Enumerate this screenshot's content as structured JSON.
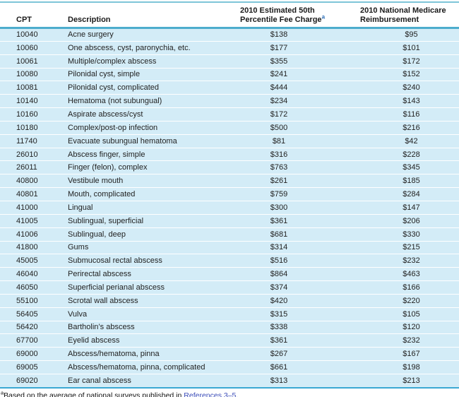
{
  "header": {
    "cpt": "CPT",
    "description": "Description",
    "fee_line1": "2010 Estimated 50th",
    "fee_line2": "Percentile Fee Charge",
    "fee_footnote_mark": "a",
    "medicare_line1": "2010 National Medicare",
    "medicare_line2": "Reimbursement"
  },
  "rows": [
    {
      "cpt": "10040",
      "description": "Acne surgery",
      "fee": "$138",
      "medicare": "$95"
    },
    {
      "cpt": "10060",
      "description": "One abscess, cyst, paronychia, etc.",
      "fee": "$177",
      "medicare": "$101"
    },
    {
      "cpt": "10061",
      "description": "Multiple/complex abscess",
      "fee": "$355",
      "medicare": "$172"
    },
    {
      "cpt": "10080",
      "description": "Pilonidal cyst, simple",
      "fee": "$241",
      "medicare": "$152"
    },
    {
      "cpt": "10081",
      "description": "Pilonidal cyst, complicated",
      "fee": "$444",
      "medicare": "$240"
    },
    {
      "cpt": "10140",
      "description": "Hematoma (not subungual)",
      "fee": "$234",
      "medicare": "$143"
    },
    {
      "cpt": "10160",
      "description": "Aspirate abscess/cyst",
      "fee": "$172",
      "medicare": "$116"
    },
    {
      "cpt": "10180",
      "description": "Complex/post-op infection",
      "fee": "$500",
      "medicare": "$216"
    },
    {
      "cpt": "11740",
      "description": "Evacuate subungual hematoma",
      "fee": "$81",
      "medicare": "$42"
    },
    {
      "cpt": "26010",
      "description": "Abscess finger, simple",
      "fee": "$316",
      "medicare": "$228"
    },
    {
      "cpt": "26011",
      "description": "Finger (felon), complex",
      "fee": "$763",
      "medicare": "$345"
    },
    {
      "cpt": "40800",
      "description": "Vestibule mouth",
      "fee": "$261",
      "medicare": "$185"
    },
    {
      "cpt": "40801",
      "description": "Mouth, complicated",
      "fee": "$759",
      "medicare": "$284"
    },
    {
      "cpt": "41000",
      "description": "Lingual",
      "fee": "$300",
      "medicare": "$147"
    },
    {
      "cpt": "41005",
      "description": "Sublingual, superficial",
      "fee": "$361",
      "medicare": "$206"
    },
    {
      "cpt": "41006",
      "description": "Sublingual, deep",
      "fee": "$681",
      "medicare": "$330"
    },
    {
      "cpt": "41800",
      "description": "Gums",
      "fee": "$314",
      "medicare": "$215"
    },
    {
      "cpt": "45005",
      "description": "Submucosal rectal abscess",
      "fee": "$516",
      "medicare": "$232"
    },
    {
      "cpt": "46040",
      "description": "Perirectal abscess",
      "fee": "$864",
      "medicare": "$463"
    },
    {
      "cpt": "46050",
      "description": "Superficial perianal abscess",
      "fee": "$374",
      "medicare": "$166"
    },
    {
      "cpt": "55100",
      "description": "Scrotal wall abscess",
      "fee": "$420",
      "medicare": "$220"
    },
    {
      "cpt": "56405",
      "description": "Vulva",
      "fee": "$315",
      "medicare": "$105"
    },
    {
      "cpt": "56420",
      "description": "Bartholin’s abscess",
      "fee": "$338",
      "medicare": "$120"
    },
    {
      "cpt": "67700",
      "description": "Eyelid abscess",
      "fee": "$361",
      "medicare": "$232"
    },
    {
      "cpt": "69000",
      "description": "Abscess/hematoma, pinna",
      "fee": "$267",
      "medicare": "$167"
    },
    {
      "cpt": "69005",
      "description": "Abscess/hematoma, pinna, complicated",
      "fee": "$661",
      "medicare": "$198"
    },
    {
      "cpt": "69020",
      "description": "Ear canal abscess",
      "fee": "$313",
      "medicare": "$213"
    }
  ],
  "footnote": {
    "mark": "a",
    "text": "Based on the average of national surveys published in ",
    "link": "References 3–5",
    "suffix": "."
  },
  "colors": {
    "row_bg": "#d3ecf7",
    "top_rule": "#7ec5d8",
    "header_rule": "#4dadcd",
    "bottom_rule": "#3ba8d3",
    "link": "#3b4cb8",
    "header_footnote_mark": "#2a6cb5"
  }
}
